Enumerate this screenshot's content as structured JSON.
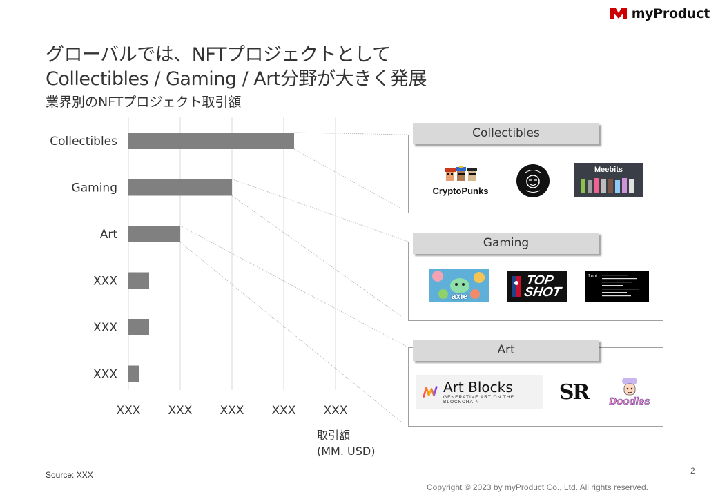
{
  "brand": {
    "name": "myProduct",
    "accent": "#cc0000"
  },
  "title": {
    "line1": "グローバルでは、NFTプロジェクトとして",
    "line2": "Collectibles  / Gaming / Art分野が大きく発展"
  },
  "subtitle": "業界別のNFTプロジェクト取引額",
  "chart_data": {
    "type": "bar",
    "orientation": "horizontal",
    "categories": [
      "Collectibles",
      "Gaming",
      "Art",
      "XXX",
      "XXX",
      "XXX"
    ],
    "values": [
      3.2,
      2.0,
      1.0,
      0.4,
      0.4,
      0.2
    ],
    "x_tick_labels": [
      "XXX",
      "XXX",
      "XXX",
      "XXX",
      "XXX"
    ],
    "xlim": [
      0,
      4
    ],
    "xlabel": "取引額\n(MM. USD)",
    "grid": true,
    "bar_color": "#808080"
  },
  "panels": [
    {
      "label": "Collectibles",
      "logos": [
        {
          "name": "cryptopunks-logo",
          "text": "CryptoPunks"
        },
        {
          "name": "bored-ape-logo"
        },
        {
          "name": "meebits-logo",
          "text": "Meebits"
        }
      ]
    },
    {
      "label": "Gaming",
      "logos": [
        {
          "name": "axie-logo",
          "text": "axie"
        },
        {
          "name": "top-shot-logo",
          "text1": "TOP",
          "text2": "SHOT"
        },
        {
          "name": "loot-logo",
          "text": "Loot"
        }
      ]
    },
    {
      "label": "Art",
      "logos": [
        {
          "name": "art-blocks-logo",
          "text": "Art Blocks",
          "tagline": "GENERATIVE ART ON THE BLOCKCHAIN"
        },
        {
          "name": "superrare-logo",
          "text": "SR"
        },
        {
          "name": "doodles-logo",
          "text": "Doodles"
        }
      ]
    }
  ],
  "source": "Source: XXX",
  "page_number": "2",
  "copyright": "Copyright © 2023 by myProduct Co., Ltd.  All rights reserved."
}
